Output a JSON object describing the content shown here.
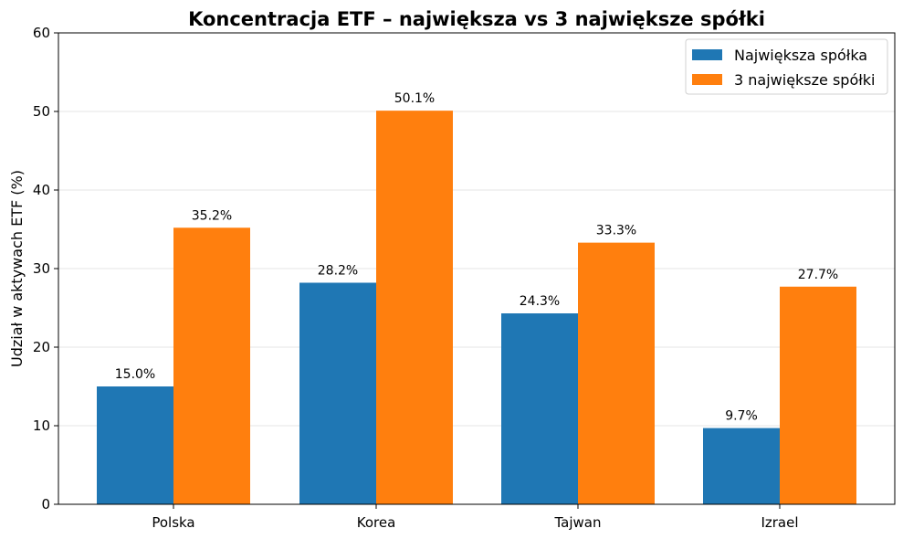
{
  "chart_data": {
    "type": "bar",
    "title": "Koncentracja ETF – największa vs 3 największe spółki",
    "xlabel": "",
    "ylabel": "Udział w aktywach ETF (%)",
    "ylim": [
      0,
      60
    ],
    "yticks": [
      0,
      10,
      20,
      30,
      40,
      50,
      60
    ],
    "grid": "horizontal",
    "legend_position": "top-right",
    "categories": [
      "Polska",
      "Korea",
      "Tajwan",
      "Izrael"
    ],
    "series": [
      {
        "name": "Największa spółka",
        "color": "#1f77b4",
        "values": [
          15.0,
          28.2,
          24.3,
          9.7
        ],
        "labels": [
          "15.0%",
          "28.2%",
          "24.3%",
          "9.7%"
        ]
      },
      {
        "name": "3 największe spółki",
        "color": "#ff7f0e",
        "values": [
          35.2,
          50.1,
          33.3,
          27.7
        ],
        "labels": [
          "35.2%",
          "50.1%",
          "33.3%",
          "27.7%"
        ]
      }
    ]
  }
}
